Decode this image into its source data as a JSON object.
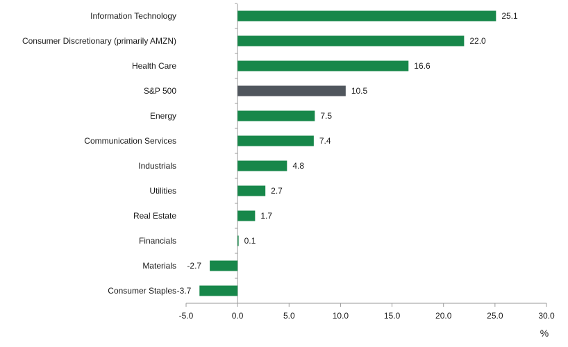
{
  "chart_data": {
    "type": "bar",
    "orientation": "horizontal",
    "title": "",
    "xlabel": "%",
    "ylabel": "",
    "xlim": [
      -5.0,
      30.0
    ],
    "x_ticks": [
      -5.0,
      0.0,
      5.0,
      10.0,
      15.0,
      20.0,
      25.0,
      30.0
    ],
    "x_tick_labels": [
      "-5.0",
      "0.0",
      "5.0",
      "10.0",
      "15.0",
      "20.0",
      "25.0",
      "30.0"
    ],
    "grid": false,
    "legend": "none",
    "categories": [
      "Information Technology",
      "Consumer Discretionary (primarily AMZN)",
      "Health Care",
      "S&P 500",
      "Energy",
      "Communication Services",
      "Industrials",
      "Utilities",
      "Real Estate",
      "Financials",
      "Materials",
      "Consumer Staples"
    ],
    "values": [
      25.1,
      22.0,
      16.6,
      10.5,
      7.5,
      7.4,
      4.8,
      2.7,
      1.7,
      0.1,
      -2.7,
      -3.7
    ],
    "value_labels": [
      "25.1",
      "22.0",
      "16.6",
      "10.5",
      "7.5",
      "7.4",
      "4.8",
      "2.7",
      "1.7",
      "0.1",
      "-2.7",
      "-3.7"
    ],
    "highlight_category": "S&P 500",
    "colors": {
      "bar": "#17874a",
      "highlight": "#50565d",
      "axis": "#9a9a9a",
      "text": "#1a1a1a"
    }
  }
}
